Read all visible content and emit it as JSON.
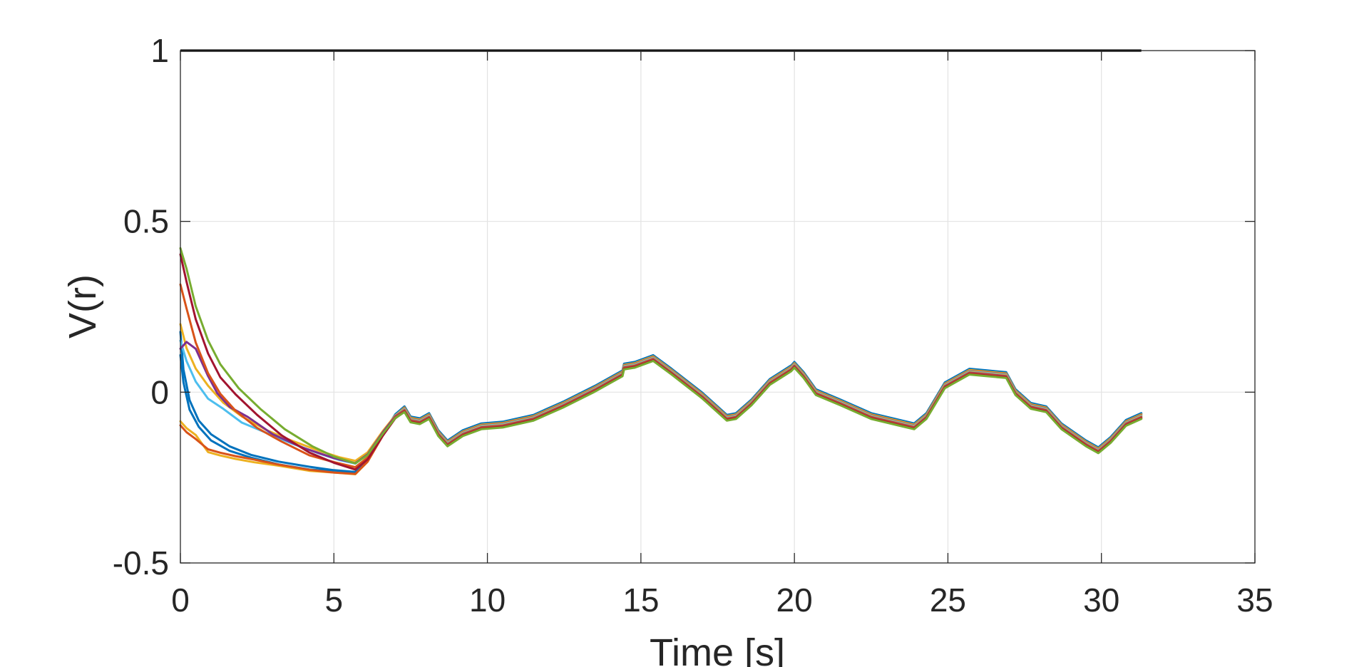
{
  "chart_data": {
    "type": "line",
    "title": "",
    "xlabel": "Time [s]",
    "ylabel": "V(r)",
    "xlim": [
      0,
      35
    ],
    "ylim": [
      -0.5,
      1
    ],
    "xticks": [
      0,
      5,
      10,
      15,
      20,
      25,
      30,
      35
    ],
    "yticks": [
      -0.5,
      0,
      0.5,
      1
    ],
    "xtick_labels": [
      "0",
      "5",
      "10",
      "15",
      "20",
      "25",
      "30",
      "35"
    ],
    "ytick_labels": [
      "-0.5",
      "0",
      "0.5",
      "1"
    ],
    "grid": true,
    "legend": "none",
    "shared_tail": {
      "x": [
        5.7,
        6.1,
        6.6,
        7.0,
        7.3,
        7.5,
        7.8,
        8.1,
        8.4,
        8.7,
        9.2,
        9.8,
        10.5,
        11.5,
        12.5,
        13.5,
        14.4,
        14.45,
        14.8,
        15.1,
        15.4,
        16.0,
        17.0,
        17.8,
        18.1,
        18.6,
        19.2,
        19.9,
        20.0,
        20.3,
        20.7,
        21.5,
        22.5,
        23.9,
        24.3,
        24.9,
        25.7,
        26.3,
        26.9,
        27.2,
        27.7,
        28.2,
        28.7,
        29.5,
        29.9,
        30.3,
        30.8,
        31.3
      ],
      "y": [
        -0.22,
        -0.19,
        -0.12,
        -0.07,
        -0.05,
        -0.08,
        -0.085,
        -0.07,
        -0.12,
        -0.15,
        -0.12,
        -0.1,
        -0.095,
        -0.075,
        -0.035,
        0.01,
        0.055,
        0.075,
        0.08,
        0.09,
        0.1,
        0.06,
        -0.01,
        -0.075,
        -0.07,
        -0.03,
        0.03,
        0.07,
        0.08,
        0.05,
        0.0,
        -0.03,
        -0.07,
        -0.1,
        -0.07,
        0.02,
        0.06,
        0.055,
        0.05,
        0.0,
        -0.04,
        -0.05,
        -0.1,
        -0.15,
        -0.17,
        -0.14,
        -0.09,
        -0.07
      ]
    },
    "series": [
      {
        "color": "#0072bd",
        "x": [
          0.0,
          0.1,
          0.3,
          0.6,
          1.0,
          1.6,
          2.3,
          3.2,
          4.2,
          5.0,
          5.7
        ],
        "y": [
          0.1,
          0.02,
          -0.06,
          -0.11,
          -0.15,
          -0.18,
          -0.2,
          -0.22,
          -0.235,
          -0.24,
          -0.245
        ]
      },
      {
        "color": "#0072bd",
        "x": [
          0.0,
          0.1,
          0.3,
          0.6,
          1.0,
          1.6,
          2.3,
          3.2,
          4.2,
          5.0,
          5.7
        ],
        "y": [
          0.17,
          0.06,
          -0.03,
          -0.09,
          -0.13,
          -0.165,
          -0.19,
          -0.21,
          -0.225,
          -0.235,
          -0.24
        ]
      },
      {
        "color": "#edb120",
        "x": [
          0.0,
          0.2,
          0.5,
          0.9,
          1.3,
          1.8,
          2.4,
          3.2,
          4.2,
          5.0,
          5.7
        ],
        "y": [
          -0.09,
          -0.11,
          -0.13,
          -0.18,
          -0.19,
          -0.2,
          -0.21,
          -0.22,
          -0.235,
          -0.24,
          -0.245
        ]
      },
      {
        "color": "#d95319",
        "x": [
          0.0,
          0.2,
          0.5,
          0.9,
          1.3,
          1.8,
          2.4,
          3.2,
          4.2,
          5.0,
          5.7
        ],
        "y": [
          -0.1,
          -0.12,
          -0.14,
          -0.17,
          -0.18,
          -0.19,
          -0.2,
          -0.215,
          -0.23,
          -0.238,
          -0.242
        ]
      },
      {
        "color": "#4dbeee",
        "x": [
          0.0,
          0.2,
          0.5,
          0.9,
          1.4,
          2.0,
          2.8,
          3.6,
          4.5,
          5.2,
          5.7
        ],
        "y": [
          0.15,
          0.09,
          0.03,
          -0.02,
          -0.05,
          -0.09,
          -0.12,
          -0.15,
          -0.18,
          -0.2,
          -0.21
        ]
      },
      {
        "color": "#edb120",
        "x": [
          0.0,
          0.2,
          0.5,
          0.9,
          1.4,
          2.0,
          2.8,
          3.6,
          4.5,
          5.2,
          5.7
        ],
        "y": [
          0.2,
          0.13,
          0.07,
          0.02,
          -0.03,
          -0.07,
          -0.11,
          -0.14,
          -0.17,
          -0.19,
          -0.2
        ]
      },
      {
        "color": "#7e2f8e",
        "x": [
          0.0,
          0.2,
          0.5,
          0.9,
          1.2,
          1.6,
          2.2,
          3.0,
          4.0,
          5.0,
          5.7
        ],
        "y": [
          0.13,
          0.15,
          0.13,
          0.05,
          0.0,
          -0.04,
          -0.07,
          -0.12,
          -0.16,
          -0.19,
          -0.205
        ]
      },
      {
        "color": "#d95319",
        "x": [
          0.0,
          0.2,
          0.5,
          0.9,
          1.3,
          1.8,
          2.5,
          3.3,
          4.2,
          5.0,
          5.7
        ],
        "y": [
          0.32,
          0.25,
          0.15,
          0.06,
          0.0,
          -0.05,
          -0.1,
          -0.14,
          -0.18,
          -0.2,
          -0.215
        ]
      },
      {
        "color": "#a2142f",
        "x": [
          0.0,
          0.2,
          0.5,
          0.9,
          1.3,
          1.8,
          2.5,
          3.3,
          4.2,
          5.0,
          5.7
        ],
        "y": [
          0.41,
          0.33,
          0.22,
          0.12,
          0.05,
          0.0,
          -0.06,
          -0.12,
          -0.17,
          -0.2,
          -0.22
        ]
      },
      {
        "color": "#77ac30",
        "x": [
          0.0,
          0.2,
          0.5,
          0.9,
          1.3,
          1.9,
          2.6,
          3.4,
          4.3,
          5.0,
          5.7
        ],
        "y": [
          0.43,
          0.37,
          0.26,
          0.16,
          0.09,
          0.02,
          -0.04,
          -0.1,
          -0.15,
          -0.18,
          -0.2
        ]
      }
    ],
    "reference_line": {
      "color": "#000000",
      "x": [
        0,
        31.3
      ],
      "y": [
        1,
        1
      ]
    }
  }
}
